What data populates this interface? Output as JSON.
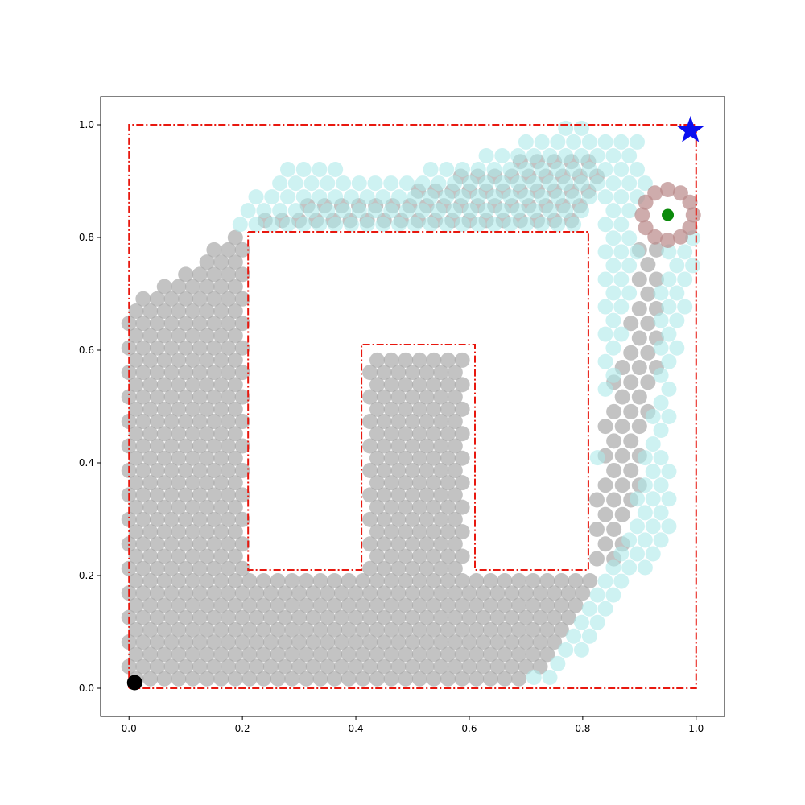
{
  "chart_data": {
    "type": "scatter",
    "title": "",
    "xlabel": "",
    "ylabel": "",
    "xlim": [
      -0.05,
      1.05
    ],
    "ylim": [
      -0.05,
      1.05
    ],
    "grid": false,
    "x_ticks": [
      0.0,
      0.2,
      0.4,
      0.6,
      0.8,
      1.0
    ],
    "y_ticks": [
      0.0,
      0.2,
      0.4,
      0.6,
      0.8,
      1.0
    ],
    "x_tick_labels": [
      "0.0",
      "0.2",
      "0.4",
      "0.6",
      "0.8",
      "1.0"
    ],
    "y_tick_labels": [
      "0.0",
      "0.2",
      "0.4",
      "0.6",
      "0.8",
      "1.0"
    ],
    "boundaries": [
      {
        "style": "dash-dot",
        "color": "#e8180f",
        "points": [
          [
            0,
            0
          ],
          [
            1,
            0
          ],
          [
            1,
            1
          ],
          [
            0,
            1
          ],
          [
            0,
            0
          ]
        ]
      },
      {
        "style": "dash-dot",
        "color": "#e8180f",
        "points": [
          [
            0.21,
            0.81
          ],
          [
            0.81,
            0.81
          ],
          [
            0.81,
            0.21
          ],
          [
            0.61,
            0.21
          ],
          [
            0.61,
            0.61
          ],
          [
            0.41,
            0.61
          ],
          [
            0.41,
            0.21
          ],
          [
            0.21,
            0.21
          ],
          [
            0.21,
            0.81
          ]
        ]
      }
    ],
    "markers": {
      "start": {
        "x": 0.01,
        "y": 0.01,
        "color": "#000000",
        "shape": "circle"
      },
      "goal": {
        "x": 0.99,
        "y": 0.99,
        "color": "#0a0ff0",
        "shape": "star"
      },
      "current": {
        "x": 0.95,
        "y": 0.84,
        "color": "#0b8a0b",
        "shape": "circle"
      }
    },
    "sample_regions": [
      {
        "name": "",
        "color": "#a9a9a9",
        "opacity": 0.7,
        "description_key": "gray_fill",
        "spacing": 0.025,
        "polygon": [
          [
            0.0,
            0.0
          ],
          [
            0.65,
            0.0
          ],
          [
            0.72,
            0.03
          ],
          [
            0.78,
            0.1
          ],
          [
            0.82,
            0.2
          ],
          [
            0.21,
            0.2
          ],
          [
            0.21,
            0.81
          ],
          [
            0.18,
            0.81
          ],
          [
            0.12,
            0.76
          ],
          [
            0.05,
            0.72
          ],
          [
            0.0,
            0.68
          ]
        ]
      },
      {
        "name": "",
        "color": "#a9a9a9",
        "opacity": 0.7,
        "description_key": "gray_inner",
        "spacing": 0.025,
        "polygon": [
          [
            0.42,
            0.21
          ],
          [
            0.6,
            0.21
          ],
          [
            0.6,
            0.6
          ],
          [
            0.42,
            0.6
          ]
        ]
      },
      {
        "name": "",
        "color": "#a9a9a9",
        "opacity": 0.7,
        "description_key": "gray_top",
        "spacing": 0.03,
        "polygon": [
          [
            0.22,
            0.82
          ],
          [
            0.8,
            0.82
          ],
          [
            0.84,
            0.9
          ],
          [
            0.83,
            0.96
          ],
          [
            0.6,
            0.92
          ],
          [
            0.45,
            0.86
          ],
          [
            0.3,
            0.86
          ],
          [
            0.22,
            0.84
          ]
        ]
      },
      {
        "name": "",
        "color": "#a9a9a9",
        "opacity": 0.7,
        "description_key": "gray_right",
        "spacing": 0.03,
        "polygon": [
          [
            0.82,
            0.2
          ],
          [
            0.86,
            0.22
          ],
          [
            0.9,
            0.35
          ],
          [
            0.93,
            0.55
          ],
          [
            0.94,
            0.78
          ],
          [
            0.9,
            0.78
          ],
          [
            0.87,
            0.6
          ],
          [
            0.83,
            0.45
          ],
          [
            0.82,
            0.3
          ]
        ]
      },
      {
        "name": "",
        "color": "#aeeaea",
        "opacity": 0.6,
        "description_key": "cyan_band",
        "spacing": 0.028,
        "polygon": [
          [
            0.0,
            0.66
          ],
          [
            0.06,
            0.72
          ],
          [
            0.14,
            0.78
          ],
          [
            0.2,
            0.86
          ],
          [
            0.3,
            0.95
          ],
          [
            0.45,
            0.9
          ],
          [
            0.6,
            0.94
          ],
          [
            0.76,
            1.0
          ],
          [
            0.9,
            0.98
          ],
          [
            0.91,
            0.9
          ],
          [
            1.0,
            0.8
          ],
          [
            0.99,
            0.7
          ],
          [
            0.96,
            0.56
          ],
          [
            0.95,
            0.45
          ],
          [
            0.96,
            0.3
          ],
          [
            0.92,
            0.22
          ],
          [
            0.84,
            0.13
          ],
          [
            0.8,
            0.06
          ],
          [
            0.72,
            0.0
          ],
          [
            0.65,
            0.0
          ],
          [
            0.72,
            0.03
          ],
          [
            0.78,
            0.1
          ],
          [
            0.82,
            0.2
          ],
          [
            0.82,
            0.3
          ],
          [
            0.83,
            0.45
          ],
          [
            0.87,
            0.6
          ],
          [
            0.9,
            0.78
          ],
          [
            0.94,
            0.78
          ],
          [
            0.93,
            0.55
          ],
          [
            0.9,
            0.35
          ],
          [
            0.86,
            0.22
          ],
          [
            0.82,
            0.2
          ],
          [
            0.84,
            0.9
          ],
          [
            0.8,
            0.82
          ],
          [
            0.22,
            0.82
          ],
          [
            0.22,
            0.84
          ],
          [
            0.18,
            0.81
          ],
          [
            0.12,
            0.76
          ],
          [
            0.05,
            0.72
          ]
        ]
      }
    ],
    "ring": {
      "center_x": 0.95,
      "center_y": 0.84,
      "radius": 0.045,
      "count": 12,
      "color": "#b98989",
      "opacity": 0.7
    }
  }
}
